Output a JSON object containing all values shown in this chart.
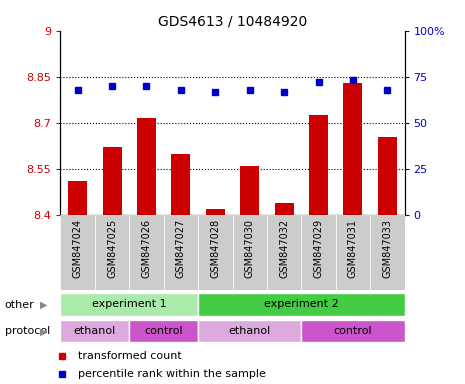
{
  "title": "GDS4613 / 10484920",
  "samples": [
    "GSM847024",
    "GSM847025",
    "GSM847026",
    "GSM847027",
    "GSM847028",
    "GSM847030",
    "GSM847032",
    "GSM847029",
    "GSM847031",
    "GSM847033"
  ],
  "bar_values": [
    8.51,
    8.62,
    8.715,
    8.6,
    8.42,
    8.56,
    8.44,
    8.725,
    8.83,
    8.655
  ],
  "dot_values": [
    68,
    70,
    70,
    68,
    67,
    68,
    67,
    72,
    73,
    68
  ],
  "ylim_left": [
    8.4,
    9.0
  ],
  "ylim_right": [
    0,
    100
  ],
  "yticks_left": [
    8.4,
    8.55,
    8.7,
    8.85,
    9.0
  ],
  "yticks_right": [
    0,
    25,
    50,
    75,
    100
  ],
  "ytick_labels_left": [
    "8.4",
    "8.55",
    "8.7",
    "8.85",
    "9"
  ],
  "ytick_labels_right": [
    "0",
    "25",
    "50",
    "75",
    "100%"
  ],
  "hlines": [
    8.55,
    8.7,
    8.85
  ],
  "bar_color": "#cc0000",
  "dot_color": "#0000cc",
  "bar_bottom": 8.4,
  "groups": [
    {
      "label": "experiment 1",
      "start": 0,
      "end": 4,
      "color": "#aaeaaa"
    },
    {
      "label": "experiment 2",
      "start": 4,
      "end": 10,
      "color": "#44cc44"
    }
  ],
  "protocols": [
    {
      "label": "ethanol",
      "start": 0,
      "end": 2,
      "color": "#ddaadd"
    },
    {
      "label": "control",
      "start": 2,
      "end": 4,
      "color": "#cc55cc"
    },
    {
      "label": "ethanol",
      "start": 4,
      "end": 7,
      "color": "#ddaadd"
    },
    {
      "label": "control",
      "start": 7,
      "end": 10,
      "color": "#cc55cc"
    }
  ],
  "other_label": "other",
  "protocol_label": "protocol",
  "legend_items": [
    {
      "label": "transformed count",
      "color": "#cc0000"
    },
    {
      "label": "percentile rank within the sample",
      "color": "#0000cc"
    }
  ],
  "tick_color_left": "#cc0000",
  "tick_color_right": "#0000cc",
  "bar_width": 0.55,
  "sample_bg_color": "#cccccc",
  "arrow_color": "#888888"
}
